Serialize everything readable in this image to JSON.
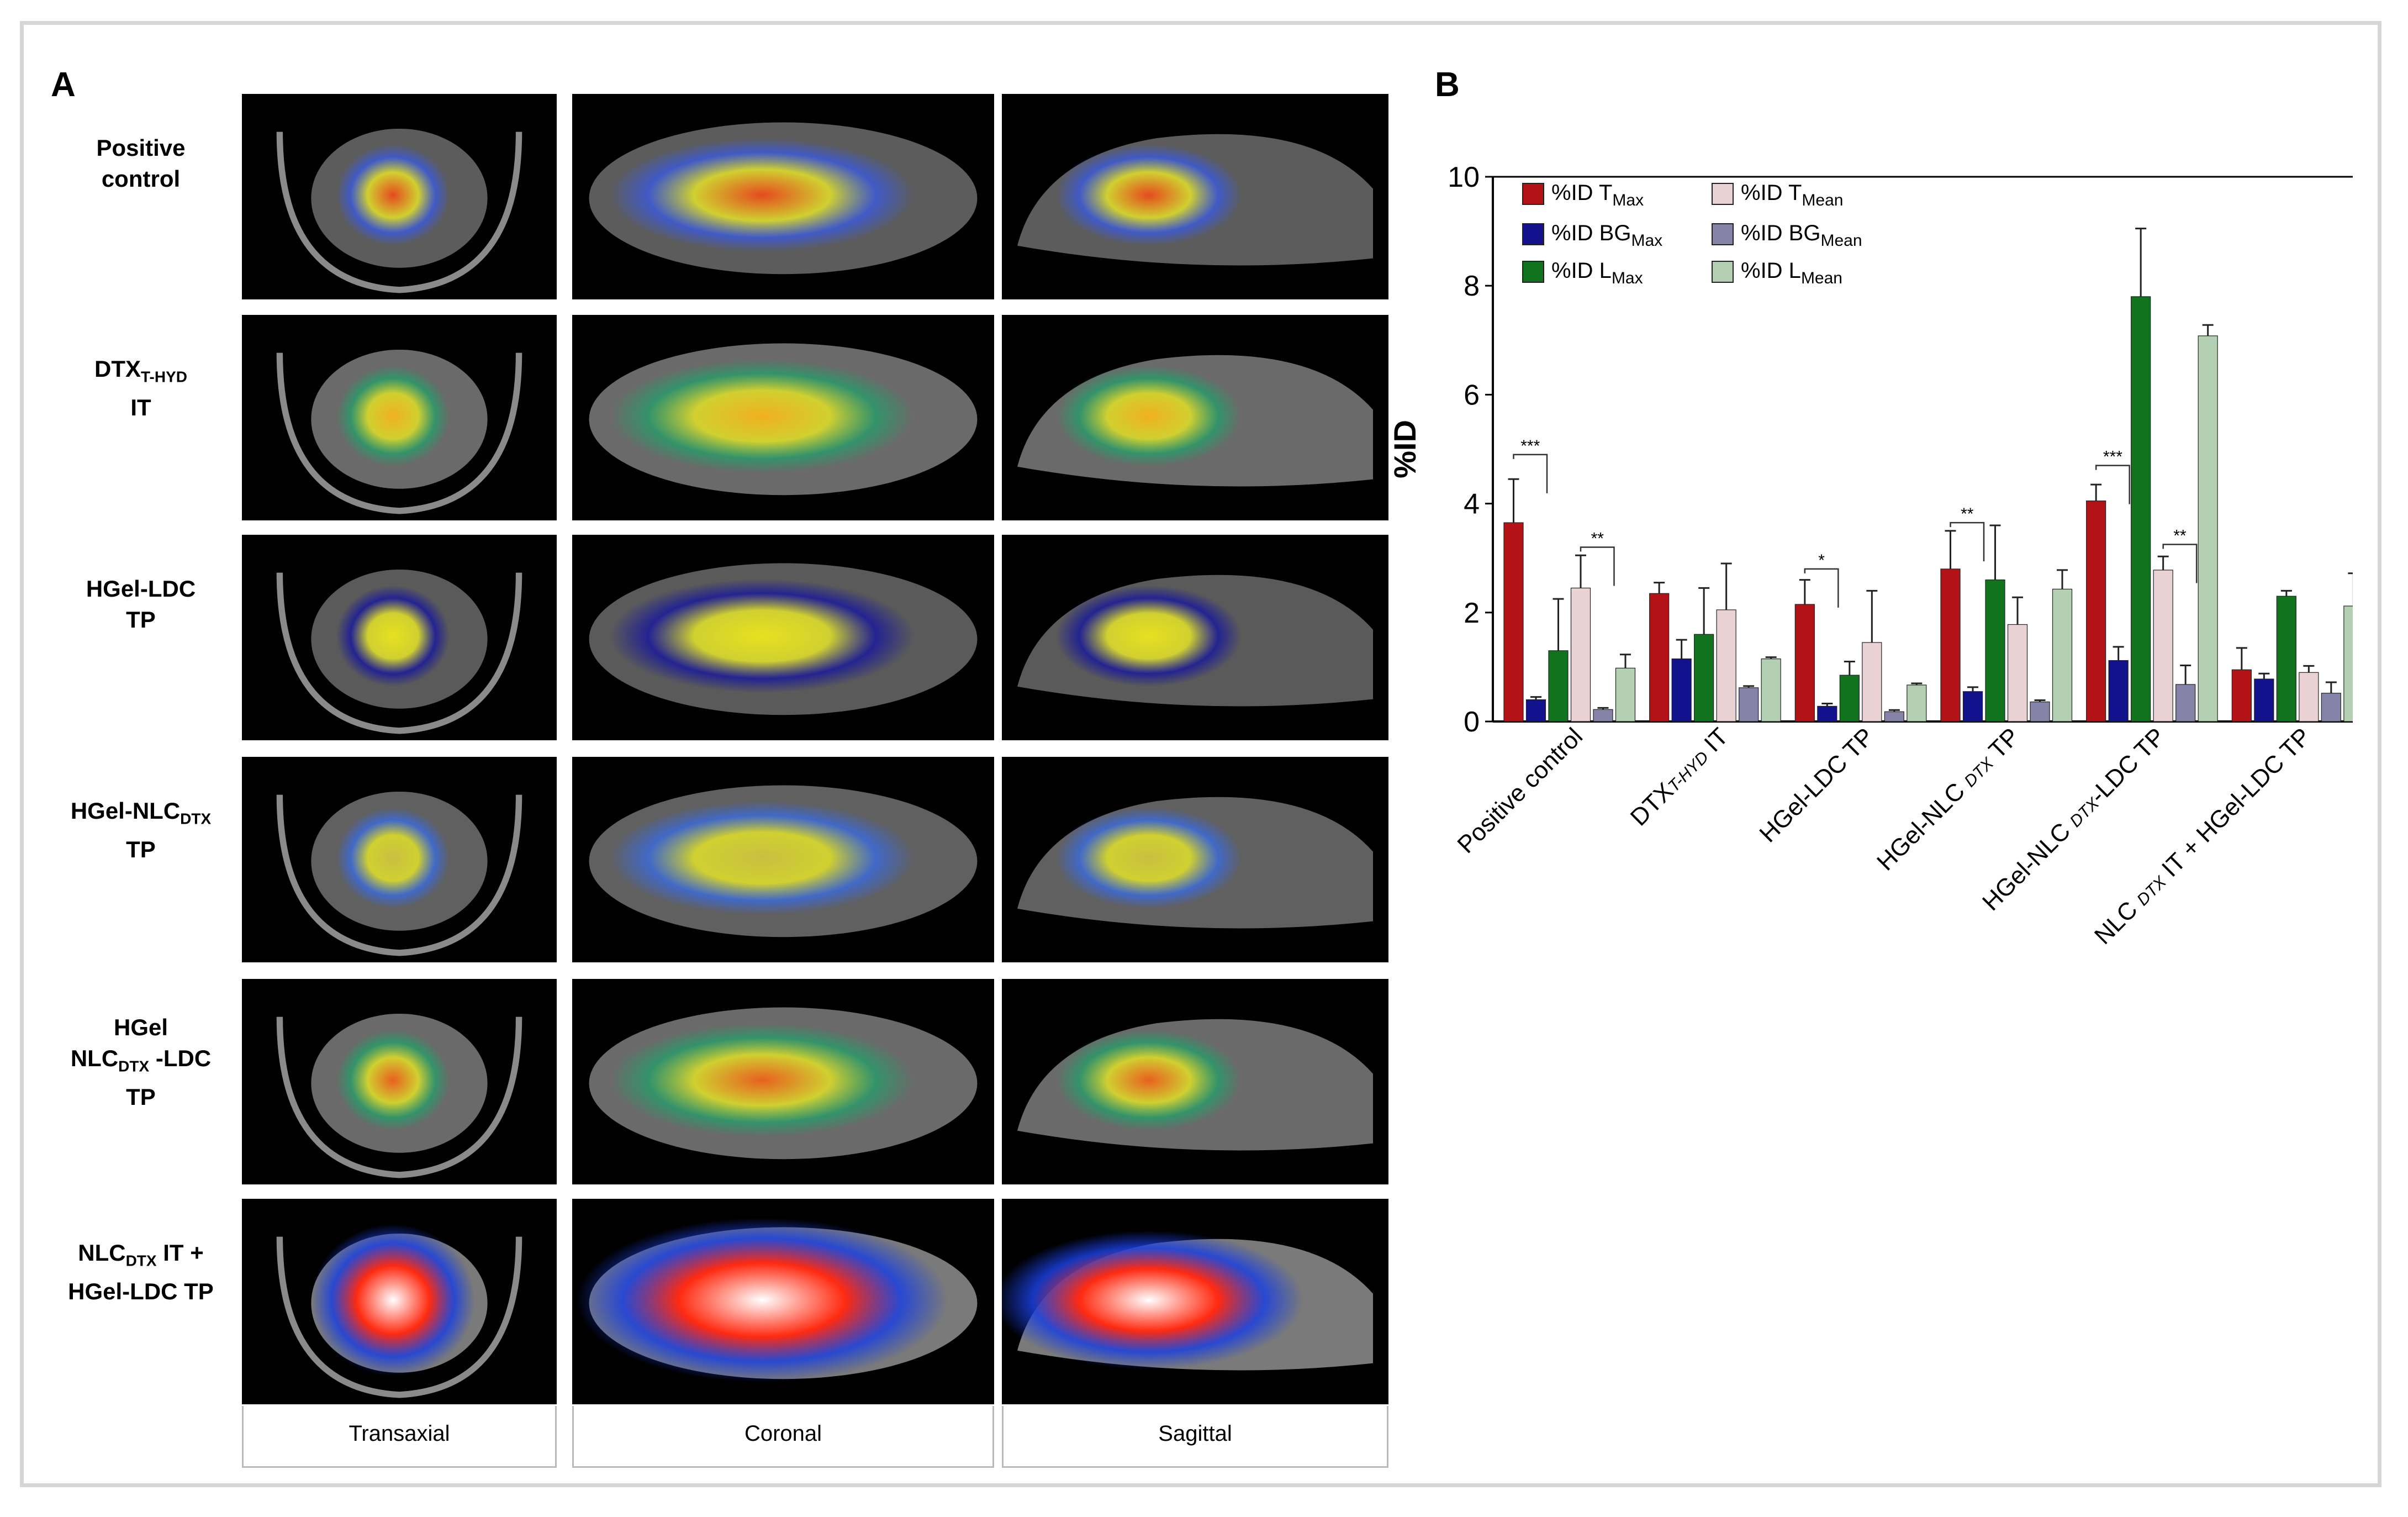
{
  "panel_a": {
    "letter": "A",
    "rows": [
      {
        "lines": [
          "Positive",
          "control"
        ]
      },
      {
        "lines": [
          "DTX<sub>T-HYD</sub>",
          "IT"
        ]
      },
      {
        "lines": [
          "HGel-LDC",
          "TP"
        ]
      },
      {
        "lines": [
          "HGel-NLC<sub>DTX</sub>",
          "TP"
        ]
      },
      {
        "lines": [
          "HGel",
          "NLC<sub>DTX</sub> -LDC",
          "TP"
        ]
      },
      {
        "lines": [
          "NLC<sub>DTX</sub> IT +",
          "HGel-LDC TP"
        ]
      }
    ],
    "columns": [
      "Transaxial",
      "Coronal",
      "Sagittal"
    ]
  },
  "panel_b": {
    "letter": "B"
  },
  "chart_data": {
    "type": "bar",
    "ylabel": "%ID",
    "ylim": [
      0,
      10
    ],
    "yticks": [
      0,
      2,
      4,
      6,
      8,
      10
    ],
    "categories": [
      [
        "Positive control"
      ],
      [
        "DTX",
        "T-HYD",
        " IT"
      ],
      [
        "HGel-LDC TP"
      ],
      [
        "HGel-NLC ",
        "DTX",
        " TP"
      ],
      [
        "HGel-NLC ",
        "DTX",
        "-LDC TP"
      ],
      [
        "NLC ",
        "DTX",
        " IT + HGel-LDC TP"
      ]
    ],
    "series": [
      {
        "name": "%ID T",
        "sub": "Max",
        "color": "#b31217",
        "values": [
          3.65,
          2.35,
          2.15,
          2.8,
          4.05,
          0.95
        ],
        "errors": [
          0.8,
          0.2,
          0.45,
          0.7,
          0.3,
          0.4
        ]
      },
      {
        "name": "%ID BG",
        "sub": "Max",
        "color": "#12128c",
        "values": [
          0.4,
          1.15,
          0.28,
          0.55,
          1.12,
          0.78
        ],
        "errors": [
          0.05,
          0.35,
          0.05,
          0.08,
          0.25,
          0.1
        ]
      },
      {
        "name": "%ID L",
        "sub": "Max",
        "color": "#12731f",
        "values": [
          1.3,
          1.6,
          0.85,
          2.6,
          7.8,
          2.3
        ],
        "errors": [
          0.95,
          0.85,
          0.25,
          1.0,
          1.25,
          0.1
        ]
      },
      {
        "name": "%ID T",
        "sub": "Mean",
        "color": "#ead2d4",
        "values": [
          2.45,
          2.05,
          1.45,
          1.78,
          2.78,
          0.9
        ],
        "errors": [
          0.6,
          0.85,
          0.95,
          0.5,
          0.25,
          0.12
        ]
      },
      {
        "name": "%ID BG",
        "sub": "Mean",
        "color": "#8583a7",
        "values": [
          0.22,
          0.62,
          0.18,
          0.36,
          0.68,
          0.52
        ],
        "errors": [
          0.03,
          0.03,
          0.03,
          0.03,
          0.35,
          0.2
        ]
      },
      {
        "name": "%ID L",
        "sub": "Mean",
        "color": "#b3d1b2",
        "values": [
          0.98,
          1.15,
          0.67,
          2.43,
          7.08,
          2.12
        ],
        "errors": [
          0.25,
          0.03,
          0.03,
          0.35,
          0.2,
          0.6
        ]
      }
    ],
    "annotations": [
      {
        "category": 0,
        "from": 0,
        "to": 1,
        "y": 4.9,
        "text": "***"
      },
      {
        "category": 0,
        "from": 3,
        "to": 4,
        "y": 3.2,
        "text": "**"
      },
      {
        "category": 2,
        "from": 0,
        "to": 1,
        "y": 2.8,
        "text": "*"
      },
      {
        "category": 3,
        "from": 0,
        "to": 1,
        "y": 3.65,
        "text": "**"
      },
      {
        "category": 4,
        "from": 0,
        "to": 1,
        "y": 4.7,
        "text": "***"
      },
      {
        "category": 4,
        "from": 3,
        "to": 4,
        "y": 3.25,
        "text": "**"
      }
    ]
  }
}
